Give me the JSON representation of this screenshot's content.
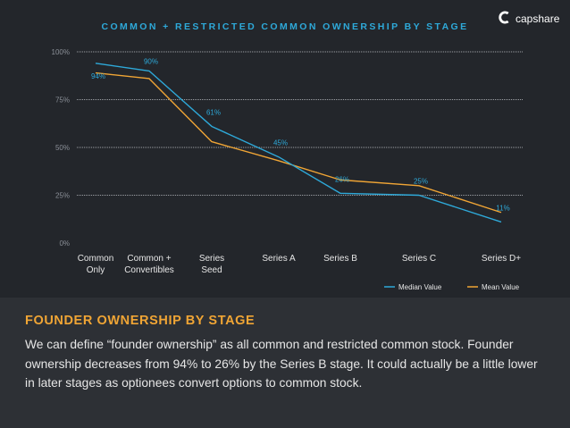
{
  "logo": {
    "text": "capshare",
    "icon": "capshare-logo-icon"
  },
  "chart_data": {
    "type": "line",
    "title": "COMMON + RESTRICTED COMMON OWNERSHIP BY STAGE",
    "categories": [
      "Common\nOnly",
      "Common +\nConvertibles",
      "Series\nSeed",
      "Series A",
      "Series B",
      "Series C",
      "Series D+"
    ],
    "series": [
      {
        "name": "Median Value",
        "color": "#2ea9d9",
        "values": [
          94,
          90,
          61,
          45,
          26,
          25,
          11
        ],
        "labels": [
          "94%",
          "90%",
          "61%",
          "45%",
          "26%",
          "25%",
          "11%"
        ]
      },
      {
        "name": "Mean Value",
        "color": "#f0a535",
        "values": [
          89,
          86,
          53,
          43,
          33,
          30,
          16
        ]
      }
    ],
    "yticks": [
      "0%",
      "25%",
      "50%",
      "75%",
      "100%"
    ],
    "ytick_values": [
      0,
      25,
      50,
      75,
      100
    ],
    "ylim": [
      0,
      100
    ],
    "grid": true,
    "legend": "bottom-right"
  },
  "section": {
    "title": "FOUNDER OWNERSHIP BY STAGE",
    "body": "We can define “founder ownership” as all common and restricted common stock. Founder ownership decreases from 94% to 26% by the Series B stage.  It could actually be a little lower in later stages as optionees convert options to common stock."
  },
  "colors": {
    "background": "#23262b",
    "panel": "#2d3035",
    "median": "#2ea9d9",
    "mean": "#f0a535"
  }
}
